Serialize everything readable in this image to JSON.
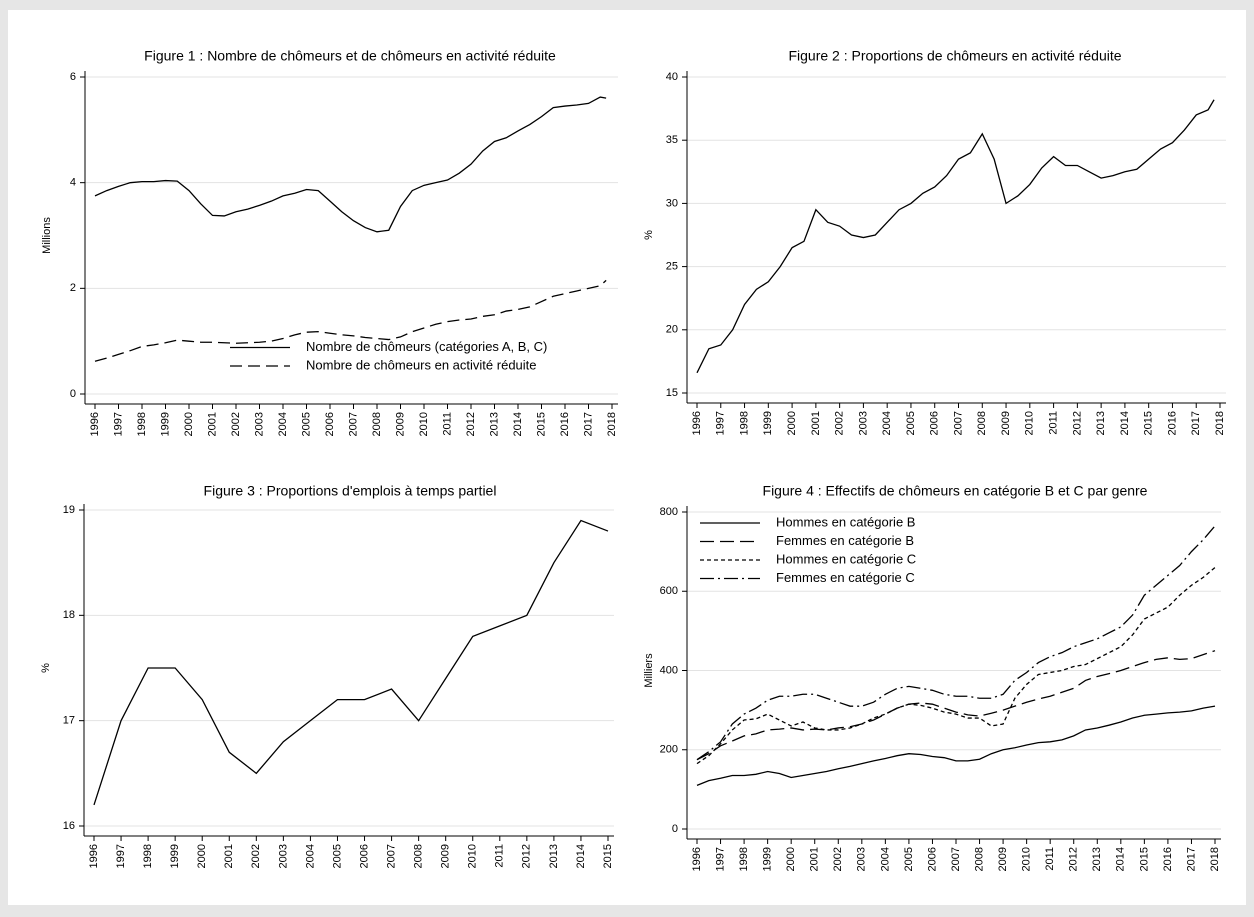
{
  "chart_data": [
    {
      "type": "line",
      "title": "Figure 1 : Nombre de chômeurs et de chômeurs en activité réduite",
      "ylabel": "Millions",
      "x": [
        1996,
        1996.5,
        1997,
        1997.5,
        1998,
        1998.5,
        1999,
        1999.5,
        2000,
        2000.5,
        2001,
        2001.5,
        2002,
        2002.5,
        2003,
        2003.5,
        2004,
        2004.5,
        2005,
        2005.5,
        2006,
        2006.5,
        2007,
        2007.5,
        2008,
        2008.5,
        2009,
        2009.5,
        2010,
        2010.5,
        2011,
        2011.5,
        2012,
        2012.5,
        2013,
        2013.5,
        2014,
        2014.5,
        2015,
        2015.5,
        2016,
        2016.5,
        2017,
        2017.5,
        2017.75
      ],
      "series": [
        {
          "name": "Nombre de chômeurs (catégories A, B, C)",
          "color": "#000000",
          "dash": "none",
          "values": [
            3.75,
            3.85,
            3.93,
            4.0,
            4.02,
            4.02,
            4.04,
            4.03,
            3.85,
            3.6,
            3.38,
            3.37,
            3.45,
            3.5,
            3.57,
            3.65,
            3.75,
            3.8,
            3.87,
            3.85,
            3.65,
            3.45,
            3.28,
            3.15,
            3.07,
            3.1,
            3.55,
            3.85,
            3.95,
            4.0,
            4.05,
            4.18,
            4.35,
            4.6,
            4.78,
            4.85,
            4.98,
            5.1,
            5.25,
            5.42,
            5.45,
            5.47,
            5.5,
            5.62,
            5.6
          ]
        },
        {
          "name": "Nombre de chômeurs en activité réduite",
          "color": "#000000",
          "dash": "12,6",
          "values": [
            0.62,
            0.68,
            0.75,
            0.82,
            0.9,
            0.93,
            0.97,
            1.02,
            1.0,
            0.98,
            0.98,
            0.97,
            0.96,
            0.97,
            0.98,
            1.0,
            1.05,
            1.12,
            1.17,
            1.18,
            1.15,
            1.12,
            1.1,
            1.07,
            1.05,
            1.03,
            1.08,
            1.18,
            1.25,
            1.32,
            1.37,
            1.4,
            1.42,
            1.47,
            1.5,
            1.57,
            1.6,
            1.65,
            1.75,
            1.85,
            1.9,
            1.95,
            2.0,
            2.05,
            2.15
          ]
        }
      ],
      "xlim": [
        1996,
        2018
      ],
      "xticks": [
        1996,
        1997,
        1998,
        1999,
        2000,
        2001,
        2002,
        2003,
        2004,
        2005,
        2006,
        2007,
        2008,
        2009,
        2010,
        2011,
        2012,
        2013,
        2014,
        2015,
        2016,
        2017,
        2018
      ],
      "ylim": [
        0,
        6
      ],
      "yticks": [
        0,
        2,
        4,
        6
      ],
      "grid": true,
      "legend": "lower right"
    },
    {
      "type": "line",
      "title": "Figure 2 : Proportions de chômeurs en activité réduite",
      "ylabel": "%",
      "x": [
        1996,
        1996.5,
        1997,
        1997.5,
        1998,
        1998.5,
        1999,
        1999.5,
        2000,
        2000.5,
        2001,
        2001.5,
        2002,
        2002.5,
        2003,
        2003.5,
        2004,
        2004.5,
        2005,
        2005.5,
        2006,
        2006.5,
        2007,
        2007.5,
        2008,
        2008.5,
        2009,
        2009.5,
        2010,
        2010.5,
        2011,
        2011.5,
        2012,
        2012.5,
        2013,
        2013.5,
        2014,
        2014.5,
        2015,
        2015.5,
        2016,
        2016.5,
        2017,
        2017.5,
        2017.75
      ],
      "series": [
        {
          "color": "#000000",
          "dash": "none",
          "values": [
            16.6,
            18.5,
            18.8,
            20,
            22,
            23.2,
            23.8,
            25,
            26.5,
            27,
            29.5,
            28.5,
            28.2,
            27.5,
            27.3,
            27.5,
            28.5,
            29.5,
            30,
            30.8,
            31.3,
            32.2,
            33.5,
            34,
            35.5,
            33.5,
            30,
            30.6,
            31.5,
            32.8,
            33.7,
            33,
            33,
            32.5,
            32,
            32.2,
            32.5,
            32.7,
            33.5,
            34.3,
            34.8,
            35.8,
            37,
            37.4,
            38.2
          ]
        }
      ],
      "xlim": [
        1996,
        2018
      ],
      "xticks": [
        1996,
        1997,
        1998,
        1999,
        2000,
        2001,
        2002,
        2003,
        2004,
        2005,
        2006,
        2007,
        2008,
        2009,
        2010,
        2011,
        2012,
        2013,
        2014,
        2015,
        2016,
        2017,
        2018
      ],
      "ylim": [
        15,
        40
      ],
      "yticks": [
        15,
        20,
        25,
        30,
        35,
        40
      ],
      "grid": true
    },
    {
      "type": "line",
      "title": "Figure 3 : Proportions d'emplois à temps partiel",
      "ylabel": "%",
      "x": [
        1996,
        1997,
        1998,
        1999,
        2000,
        2001,
        2002,
        2003,
        2004,
        2005,
        2006,
        2007,
        2008,
        2009,
        2010,
        2011,
        2012,
        2013,
        2014,
        2015
      ],
      "series": [
        {
          "color": "#000000",
          "dash": "none",
          "values": [
            16.2,
            17.0,
            17.5,
            17.5,
            17.2,
            16.7,
            16.5,
            16.8,
            17.0,
            17.2,
            17.2,
            17.3,
            17.0,
            17.4,
            17.8,
            17.9,
            18.0,
            18.5,
            18.9,
            18.8
          ]
        }
      ],
      "xlim": [
        1996,
        2015
      ],
      "xticks": [
        1996,
        1997,
        1998,
        1999,
        2000,
        2001,
        2002,
        2003,
        2004,
        2005,
        2006,
        2007,
        2008,
        2009,
        2010,
        2011,
        2012,
        2013,
        2014,
        2015
      ],
      "ylim": [
        16,
        19
      ],
      "yticks": [
        16,
        17,
        18,
        19
      ],
      "grid": true
    },
    {
      "type": "line",
      "title": "Figure 4 : Effectifs de chômeurs en catégorie B et C par genre",
      "ylabel": "Milliers",
      "x": [
        1996,
        1996.5,
        1997,
        1997.5,
        1998,
        1998.5,
        1999,
        1999.5,
        2000,
        2000.5,
        2001,
        2001.5,
        2002,
        2002.5,
        2003,
        2003.5,
        2004,
        2004.5,
        2005,
        2005.5,
        2006,
        2006.5,
        2007,
        2007.5,
        2008,
        2008.5,
        2009,
        2009.5,
        2010,
        2010.5,
        2011,
        2011.5,
        2012,
        2012.5,
        2013,
        2013.5,
        2014,
        2014.5,
        2015,
        2015.5,
        2016,
        2016.5,
        2017,
        2017.5,
        2018
      ],
      "series": [
        {
          "name": "Hommes en catégorie B",
          "color": "#000000",
          "dash": "none",
          "values": [
            110,
            122,
            128,
            135,
            135,
            138,
            145,
            140,
            130,
            135,
            140,
            145,
            152,
            158,
            165,
            172,
            178,
            185,
            190,
            188,
            183,
            180,
            172,
            172,
            176,
            190,
            200,
            205,
            212,
            218,
            220,
            225,
            235,
            250,
            255,
            262,
            270,
            280,
            287,
            290,
            293,
            295,
            298,
            305,
            310
          ]
        },
        {
          "name": "Femmes en catégorie B",
          "color": "#000000",
          "dash": "14,6",
          "values": [
            175,
            190,
            210,
            222,
            235,
            240,
            250,
            252,
            255,
            250,
            252,
            250,
            255,
            258,
            265,
            275,
            290,
            305,
            315,
            318,
            315,
            305,
            295,
            288,
            285,
            292,
            300,
            310,
            320,
            328,
            335,
            345,
            355,
            375,
            385,
            392,
            400,
            410,
            420,
            428,
            432,
            428,
            430,
            440,
            450
          ]
        },
        {
          "name": "Hommes en catégorie C",
          "color": "#000000",
          "dash": "4,3",
          "values": [
            165,
            185,
            215,
            250,
            275,
            278,
            290,
            275,
            260,
            270,
            255,
            250,
            250,
            255,
            265,
            280,
            290,
            305,
            315,
            312,
            305,
            295,
            290,
            280,
            280,
            260,
            265,
            330,
            365,
            390,
            395,
            400,
            410,
            415,
            430,
            445,
            460,
            490,
            530,
            545,
            560,
            590,
            615,
            635,
            660
          ]
        },
        {
          "name": "Femmes en catégorie C",
          "color": "#000000",
          "dash": "14,4,2,4",
          "values": [
            175,
            195,
            220,
            265,
            290,
            305,
            325,
            335,
            335,
            340,
            340,
            330,
            320,
            310,
            310,
            320,
            340,
            355,
            360,
            355,
            350,
            340,
            335,
            335,
            330,
            330,
            340,
            375,
            395,
            420,
            435,
            445,
            460,
            470,
            480,
            495,
            510,
            540,
            590,
            615,
            640,
            665,
            700,
            730,
            765
          ]
        }
      ],
      "xlim": [
        1996,
        2018
      ],
      "xticks": [
        1996,
        1997,
        1998,
        1999,
        2000,
        2001,
        2002,
        2003,
        2004,
        2005,
        2006,
        2007,
        2008,
        2009,
        2010,
        2011,
        2012,
        2013,
        2014,
        2015,
        2016,
        2017,
        2018
      ],
      "ylim": [
        0,
        800
      ],
      "yticks": [
        0,
        200,
        400,
        600,
        800
      ],
      "grid": true,
      "legend": "upper left"
    }
  ]
}
